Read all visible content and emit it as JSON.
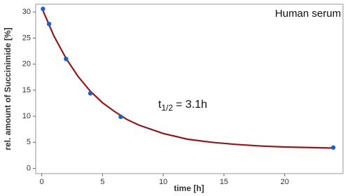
{
  "chart_data": {
    "type": "scatter",
    "title": "Human serum",
    "x_label": "time [h]",
    "y_label": "rel. amount of Succinimide [%]",
    "annotation": {
      "main": "t",
      "subscript": "1/2",
      "rest": "= 3.1h"
    },
    "xlim": [
      -0.5,
      24.8
    ],
    "xticks": [
      0,
      5,
      10,
      15,
      20
    ],
    "ylim": [
      -1,
      31.5
    ],
    "yticks": [
      0,
      5,
      10,
      15,
      20,
      25,
      30
    ],
    "series": [
      {
        "color": "#8b1a1a",
        "line": true,
        "x": [
          0,
          1,
          2,
          3,
          4,
          5,
          6,
          7,
          8,
          10,
          12,
          14,
          16,
          18,
          20,
          22,
          24
        ],
        "values": [
          30.8,
          25.4,
          21.1,
          17.6,
          14.8,
          12.6,
          10.9,
          9.4,
          8.3,
          6.7,
          5.6,
          5.0,
          4.6,
          4.3,
          4.1,
          4.0,
          3.9
        ]
      },
      {
        "color": "#1f5fbf",
        "line": false,
        "x": [
          0.1,
          0.6,
          2,
          4,
          6.5,
          24
        ],
        "values": [
          30.6,
          27.7,
          21.0,
          14.4,
          9.9,
          4.0
        ]
      }
    ]
  }
}
